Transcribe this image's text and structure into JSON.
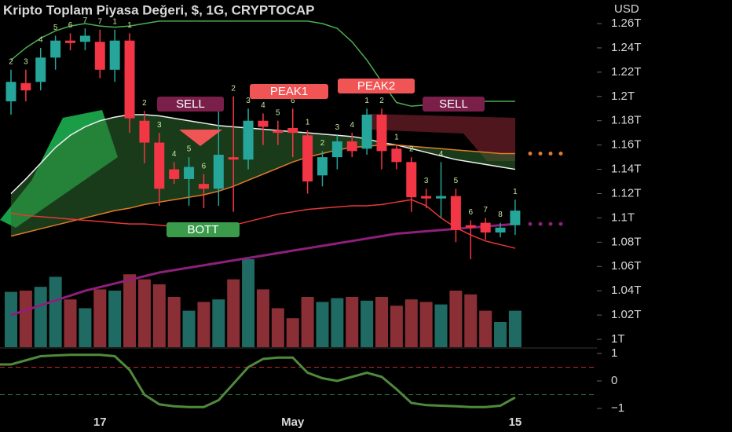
{
  "chart_data": {
    "type": "candlestick",
    "title": "Kripto Toplam Piyasa Değeri, $, 1G, CRYPTOCAP",
    "y_axis_label": "USD",
    "categories": [
      null,
      null,
      null,
      null,
      null,
      null,
      "17",
      null,
      null,
      null,
      null,
      null,
      null,
      null,
      null,
      null,
      null,
      null,
      null,
      "May",
      null,
      null,
      null,
      null,
      null,
      null,
      null,
      null,
      null,
      null,
      null,
      null,
      null,
      null,
      "15"
    ],
    "open": [
      1.196,
      1.211,
      1.212,
      1.232,
      1.246,
      1.245,
      1.245,
      1.222,
      1.246,
      1.18,
      1.162,
      1.14,
      1.132,
      1.128,
      1.124,
      1.15,
      1.148,
      1.18,
      1.172,
      1.174,
      1.168,
      1.135,
      1.15,
      1.163,
      1.157,
      1.185,
      1.157,
      1.146,
      1.118,
      1.116,
      1.118,
      1.094,
      1.096,
      1.088,
      1.094
    ],
    "high": [
      1.222,
      1.222,
      1.24,
      1.25,
      1.252,
      1.256,
      1.255,
      1.255,
      1.252,
      1.188,
      1.17,
      1.146,
      1.15,
      1.136,
      1.19,
      1.2,
      1.19,
      1.186,
      1.18,
      1.19,
      1.172,
      1.155,
      1.168,
      1.17,
      1.19,
      1.19,
      1.16,
      1.15,
      1.124,
      1.146,
      1.124,
      1.098,
      1.1,
      1.096,
      1.115
    ],
    "low": [
      1.185,
      1.196,
      1.205,
      1.222,
      1.238,
      1.238,
      1.215,
      1.212,
      1.17,
      1.145,
      1.11,
      1.128,
      1.11,
      1.108,
      1.11,
      1.105,
      1.14,
      1.16,
      1.16,
      1.15,
      1.12,
      1.126,
      1.14,
      1.15,
      1.152,
      1.14,
      1.14,
      1.105,
      1.108,
      1.1,
      1.08,
      1.066,
      1.082,
      1.084,
      1.086
    ],
    "close": [
      1.212,
      1.205,
      1.232,
      1.246,
      1.244,
      1.25,
      1.222,
      1.246,
      1.182,
      1.162,
      1.124,
      1.132,
      1.142,
      1.124,
      1.152,
      1.148,
      1.18,
      1.175,
      1.17,
      1.17,
      1.13,
      1.15,
      1.163,
      1.155,
      1.185,
      1.155,
      1.146,
      1.117,
      1.116,
      1.118,
      1.09,
      1.092,
      1.088,
      1.092,
      1.106
    ],
    "up_color": "#26a69a",
    "down_color": "#f23645",
    "ylim": [
      0.99,
      1.28
    ],
    "yticks": [
      {
        "value": 1.0,
        "label": "1T"
      },
      {
        "value": 1.02,
        "label": "1.02T"
      },
      {
        "value": 1.04,
        "label": "1.04T"
      },
      {
        "value": 1.06,
        "label": "1.06T"
      },
      {
        "value": 1.08,
        "label": "1.08T"
      },
      {
        "value": 1.1,
        "label": "1.1T"
      },
      {
        "value": 1.12,
        "label": "1.12T"
      },
      {
        "value": 1.14,
        "label": "1.14T"
      },
      {
        "value": 1.16,
        "label": "1.16T"
      },
      {
        "value": 1.18,
        "label": "1.18T"
      },
      {
        "value": 1.2,
        "label": "1.2T"
      },
      {
        "value": 1.22,
        "label": "1.22T"
      },
      {
        "value": 1.24,
        "label": "1.24T"
      },
      {
        "value": 1.26,
        "label": "1.26T"
      }
    ],
    "series": [
      {
        "name": "upper",
        "color": "#4caf50",
        "values": [
          1.23,
          1.24,
          1.248,
          1.254,
          1.258,
          1.26,
          1.258,
          1.257,
          1.258,
          1.26,
          1.262,
          1.262,
          1.262,
          1.262,
          1.262,
          1.262,
          1.262,
          1.262,
          1.262,
          1.262,
          1.262,
          1.26,
          1.256,
          1.245,
          1.23,
          1.212,
          1.195,
          1.192,
          1.193,
          1.194,
          1.195,
          1.196,
          1.196,
          1.196,
          1.196
        ]
      },
      {
        "name": "basis",
        "color": "#f0f0f0",
        "values": [
          1.12,
          1.132,
          1.145,
          1.158,
          1.168,
          1.175,
          1.18,
          1.183,
          1.185,
          1.185,
          1.184,
          1.182,
          1.18,
          1.178,
          1.176,
          1.175,
          1.174,
          1.173,
          1.172,
          1.171,
          1.17,
          1.169,
          1.168,
          1.167,
          1.165,
          1.162,
          1.16,
          1.157,
          1.154,
          1.151,
          1.148,
          1.146,
          1.144,
          1.142,
          1.14
        ]
      },
      {
        "name": "ma-orange",
        "color": "#e07b2a",
        "values": [
          1.085,
          1.088,
          1.091,
          1.094,
          1.097,
          1.1,
          1.103,
          1.106,
          1.108,
          1.111,
          1.113,
          1.115,
          1.117,
          1.119,
          1.122,
          1.126,
          1.131,
          1.136,
          1.141,
          1.146,
          1.15,
          1.153,
          1.156,
          1.158,
          1.159,
          1.16,
          1.16,
          1.159,
          1.158,
          1.157,
          1.156,
          1.155,
          1.154,
          1.153,
          1.153
        ]
      },
      {
        "name": "lower",
        "color": "#e53935",
        "values": [
          1.104,
          1.102,
          1.101,
          1.1,
          1.099,
          1.098,
          1.097,
          1.096,
          1.095,
          1.095,
          1.094,
          1.093,
          1.092,
          1.092,
          1.092,
          1.094,
          1.097,
          1.1,
          1.103,
          1.105,
          1.107,
          1.108,
          1.109,
          1.11,
          1.11,
          1.111,
          1.113,
          1.115,
          1.11,
          1.1,
          1.092,
          1.086,
          1.081,
          1.078,
          1.075
        ]
      },
      {
        "name": "ma-purple",
        "color": "#8e1f7a",
        "values": [
          1.02,
          1.024,
          1.028,
          1.032,
          1.036,
          1.04,
          1.043,
          1.046,
          1.049,
          1.052,
          1.055,
          1.057,
          1.059,
          1.061,
          1.063,
          1.065,
          1.067,
          1.069,
          1.071,
          1.073,
          1.075,
          1.077,
          1.079,
          1.081,
          1.083,
          1.085,
          1.087,
          1.088,
          1.089,
          1.09,
          1.091,
          1.092,
          1.093,
          1.094,
          1.095
        ]
      }
    ],
    "volume": [
      44,
      45,
      48,
      56,
      38,
      31,
      46,
      45,
      58,
      54,
      50,
      40,
      29,
      36,
      38,
      54,
      70,
      46,
      31,
      23,
      40,
      36,
      39,
      40,
      37,
      40,
      33,
      38,
      36,
      34,
      45,
      42,
      29,
      20,
      29
    ],
    "volume_ylim": [
      0,
      100
    ],
    "count_labels": [
      "2",
      "3",
      "4",
      "5",
      "6",
      "7",
      "7",
      "1",
      "1",
      "2",
      "3",
      "4",
      "5",
      "6",
      "1",
      "2",
      "3",
      "4",
      "5",
      "6",
      "1",
      "2",
      "3",
      "4",
      "1",
      "2",
      "1",
      "2",
      "3",
      "4",
      "5",
      "6",
      "7",
      "8",
      "1"
    ],
    "annotations": [
      "SELL",
      "PEAK1",
      "PEAK2",
      "SELL",
      "BOTT"
    ],
    "oscillator": {
      "values": [
        0.6,
        0.75,
        0.9,
        0.93,
        0.95,
        0.95,
        0.95,
        0.9,
        0.4,
        -0.5,
        -0.85,
        -0.92,
        -0.95,
        -0.95,
        -0.7,
        -0.1,
        0.5,
        0.8,
        0.85,
        0.85,
        0.3,
        0.1,
        0.0,
        0.15,
        0.3,
        0.15,
        -0.3,
        -0.8,
        -0.88,
        -0.9,
        -0.92,
        -0.95,
        -0.95,
        -0.9,
        -0.6
      ],
      "color": "#4f8a3c",
      "ylim": [
        -1.5,
        1.3
      ],
      "yticks": [
        {
          "value": -1,
          "label": "−1"
        },
        0,
        1
      ],
      "levels": [
        {
          "value": 0.5,
          "color": "#c62828"
        },
        {
          "value": -0.5,
          "color": "#2e7d32"
        }
      ]
    }
  }
}
